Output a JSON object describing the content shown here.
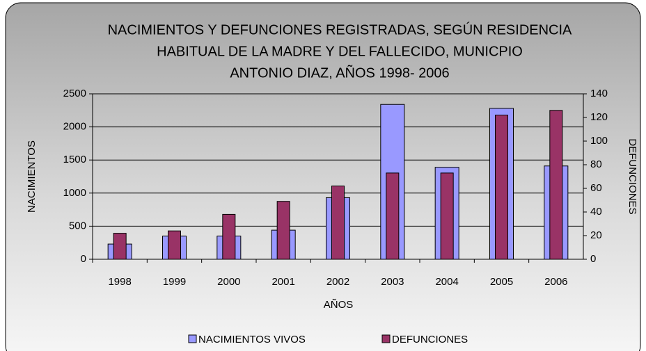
{
  "chart_data": {
    "type": "bar",
    "title": [
      "NACIMIENTOS Y DEFUNCIONES REGISTRADAS, SEGÚN RESIDENCIA",
      "HABITUAL DE LA MADRE Y DEL FALLECIDO, MUNICPIO",
      "ANTONIO DIAZ, AÑOS 1998- 2006"
    ],
    "x_label": "AÑOS",
    "y_label": "NACIMIENTOS",
    "y2_label": "DEFUNCIONES",
    "categories": [
      "1998",
      "1999",
      "2000",
      "2001",
      "2002",
      "2003",
      "2004",
      "2005",
      "2006"
    ],
    "series": [
      {
        "name": "NACIMIENTOS VIVOS",
        "color": "#9999ff",
        "values": [
          230,
          350,
          350,
          440,
          930,
          2340,
          1390,
          2280,
          1410
        ]
      },
      {
        "name": "DEFUNCIONES",
        "color": "#993366",
        "axis": "y2",
        "values": [
          22,
          24,
          38,
          49,
          62,
          73,
          73,
          122,
          126
        ]
      }
    ],
    "ylim": [
      0,
      2500
    ],
    "yticks": [
      0,
      500,
      1000,
      1500,
      2000,
      2500
    ],
    "y2lim": [
      0,
      140
    ],
    "y2ticks": [
      0,
      20,
      40,
      60,
      80,
      100,
      120,
      140
    ],
    "grid": true,
    "legend": "bottom"
  }
}
